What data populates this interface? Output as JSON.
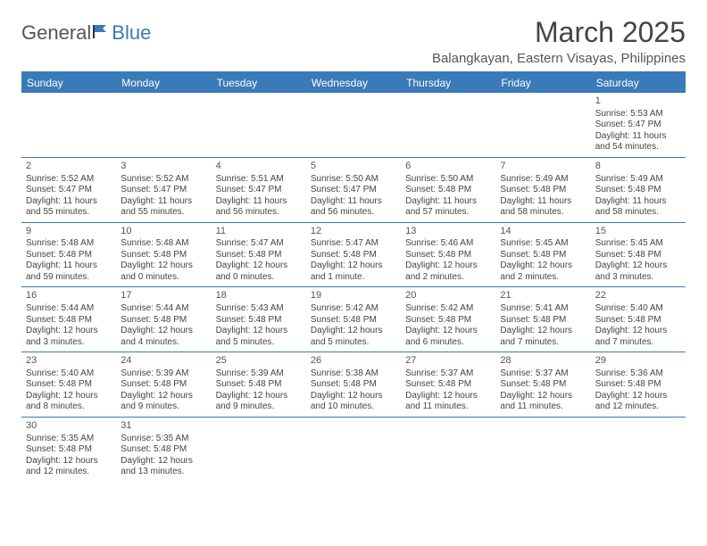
{
  "logo": {
    "text1": "General",
    "text2": "Blue"
  },
  "title": "March 2025",
  "location": "Balangkayan, Eastern Visayas, Philippines",
  "weekdays": [
    "Sunday",
    "Monday",
    "Tuesday",
    "Wednesday",
    "Thursday",
    "Friday",
    "Saturday"
  ],
  "colors": {
    "accent": "#3a7ab8",
    "background": "#ffffff",
    "text": "#444444",
    "weekday_text": "#ffffff"
  },
  "typography": {
    "title_fontsize": 32,
    "location_fontsize": 15,
    "weekday_fontsize": 12,
    "cell_fontsize": 10
  },
  "layout": {
    "columns": 7,
    "rows": 6,
    "first_day_column": 6
  },
  "days": [
    {
      "n": "1",
      "sunrise": "Sunrise: 5:53 AM",
      "sunset": "Sunset: 5:47 PM",
      "dl1": "Daylight: 11 hours",
      "dl2": "and 54 minutes."
    },
    {
      "n": "2",
      "sunrise": "Sunrise: 5:52 AM",
      "sunset": "Sunset: 5:47 PM",
      "dl1": "Daylight: 11 hours",
      "dl2": "and 55 minutes."
    },
    {
      "n": "3",
      "sunrise": "Sunrise: 5:52 AM",
      "sunset": "Sunset: 5:47 PM",
      "dl1": "Daylight: 11 hours",
      "dl2": "and 55 minutes."
    },
    {
      "n": "4",
      "sunrise": "Sunrise: 5:51 AM",
      "sunset": "Sunset: 5:47 PM",
      "dl1": "Daylight: 11 hours",
      "dl2": "and 56 minutes."
    },
    {
      "n": "5",
      "sunrise": "Sunrise: 5:50 AM",
      "sunset": "Sunset: 5:47 PM",
      "dl1": "Daylight: 11 hours",
      "dl2": "and 56 minutes."
    },
    {
      "n": "6",
      "sunrise": "Sunrise: 5:50 AM",
      "sunset": "Sunset: 5:48 PM",
      "dl1": "Daylight: 11 hours",
      "dl2": "and 57 minutes."
    },
    {
      "n": "7",
      "sunrise": "Sunrise: 5:49 AM",
      "sunset": "Sunset: 5:48 PM",
      "dl1": "Daylight: 11 hours",
      "dl2": "and 58 minutes."
    },
    {
      "n": "8",
      "sunrise": "Sunrise: 5:49 AM",
      "sunset": "Sunset: 5:48 PM",
      "dl1": "Daylight: 11 hours",
      "dl2": "and 58 minutes."
    },
    {
      "n": "9",
      "sunrise": "Sunrise: 5:48 AM",
      "sunset": "Sunset: 5:48 PM",
      "dl1": "Daylight: 11 hours",
      "dl2": "and 59 minutes."
    },
    {
      "n": "10",
      "sunrise": "Sunrise: 5:48 AM",
      "sunset": "Sunset: 5:48 PM",
      "dl1": "Daylight: 12 hours",
      "dl2": "and 0 minutes."
    },
    {
      "n": "11",
      "sunrise": "Sunrise: 5:47 AM",
      "sunset": "Sunset: 5:48 PM",
      "dl1": "Daylight: 12 hours",
      "dl2": "and 0 minutes."
    },
    {
      "n": "12",
      "sunrise": "Sunrise: 5:47 AM",
      "sunset": "Sunset: 5:48 PM",
      "dl1": "Daylight: 12 hours",
      "dl2": "and 1 minute."
    },
    {
      "n": "13",
      "sunrise": "Sunrise: 5:46 AM",
      "sunset": "Sunset: 5:48 PM",
      "dl1": "Daylight: 12 hours",
      "dl2": "and 2 minutes."
    },
    {
      "n": "14",
      "sunrise": "Sunrise: 5:45 AM",
      "sunset": "Sunset: 5:48 PM",
      "dl1": "Daylight: 12 hours",
      "dl2": "and 2 minutes."
    },
    {
      "n": "15",
      "sunrise": "Sunrise: 5:45 AM",
      "sunset": "Sunset: 5:48 PM",
      "dl1": "Daylight: 12 hours",
      "dl2": "and 3 minutes."
    },
    {
      "n": "16",
      "sunrise": "Sunrise: 5:44 AM",
      "sunset": "Sunset: 5:48 PM",
      "dl1": "Daylight: 12 hours",
      "dl2": "and 3 minutes."
    },
    {
      "n": "17",
      "sunrise": "Sunrise: 5:44 AM",
      "sunset": "Sunset: 5:48 PM",
      "dl1": "Daylight: 12 hours",
      "dl2": "and 4 minutes."
    },
    {
      "n": "18",
      "sunrise": "Sunrise: 5:43 AM",
      "sunset": "Sunset: 5:48 PM",
      "dl1": "Daylight: 12 hours",
      "dl2": "and 5 minutes."
    },
    {
      "n": "19",
      "sunrise": "Sunrise: 5:42 AM",
      "sunset": "Sunset: 5:48 PM",
      "dl1": "Daylight: 12 hours",
      "dl2": "and 5 minutes."
    },
    {
      "n": "20",
      "sunrise": "Sunrise: 5:42 AM",
      "sunset": "Sunset: 5:48 PM",
      "dl1": "Daylight: 12 hours",
      "dl2": "and 6 minutes."
    },
    {
      "n": "21",
      "sunrise": "Sunrise: 5:41 AM",
      "sunset": "Sunset: 5:48 PM",
      "dl1": "Daylight: 12 hours",
      "dl2": "and 7 minutes."
    },
    {
      "n": "22",
      "sunrise": "Sunrise: 5:40 AM",
      "sunset": "Sunset: 5:48 PM",
      "dl1": "Daylight: 12 hours",
      "dl2": "and 7 minutes."
    },
    {
      "n": "23",
      "sunrise": "Sunrise: 5:40 AM",
      "sunset": "Sunset: 5:48 PM",
      "dl1": "Daylight: 12 hours",
      "dl2": "and 8 minutes."
    },
    {
      "n": "24",
      "sunrise": "Sunrise: 5:39 AM",
      "sunset": "Sunset: 5:48 PM",
      "dl1": "Daylight: 12 hours",
      "dl2": "and 9 minutes."
    },
    {
      "n": "25",
      "sunrise": "Sunrise: 5:39 AM",
      "sunset": "Sunset: 5:48 PM",
      "dl1": "Daylight: 12 hours",
      "dl2": "and 9 minutes."
    },
    {
      "n": "26",
      "sunrise": "Sunrise: 5:38 AM",
      "sunset": "Sunset: 5:48 PM",
      "dl1": "Daylight: 12 hours",
      "dl2": "and 10 minutes."
    },
    {
      "n": "27",
      "sunrise": "Sunrise: 5:37 AM",
      "sunset": "Sunset: 5:48 PM",
      "dl1": "Daylight: 12 hours",
      "dl2": "and 11 minutes."
    },
    {
      "n": "28",
      "sunrise": "Sunrise: 5:37 AM",
      "sunset": "Sunset: 5:48 PM",
      "dl1": "Daylight: 12 hours",
      "dl2": "and 11 minutes."
    },
    {
      "n": "29",
      "sunrise": "Sunrise: 5:36 AM",
      "sunset": "Sunset: 5:48 PM",
      "dl1": "Daylight: 12 hours",
      "dl2": "and 12 minutes."
    },
    {
      "n": "30",
      "sunrise": "Sunrise: 5:35 AM",
      "sunset": "Sunset: 5:48 PM",
      "dl1": "Daylight: 12 hours",
      "dl2": "and 12 minutes."
    },
    {
      "n": "31",
      "sunrise": "Sunrise: 5:35 AM",
      "sunset": "Sunset: 5:48 PM",
      "dl1": "Daylight: 12 hours",
      "dl2": "and 13 minutes."
    }
  ]
}
